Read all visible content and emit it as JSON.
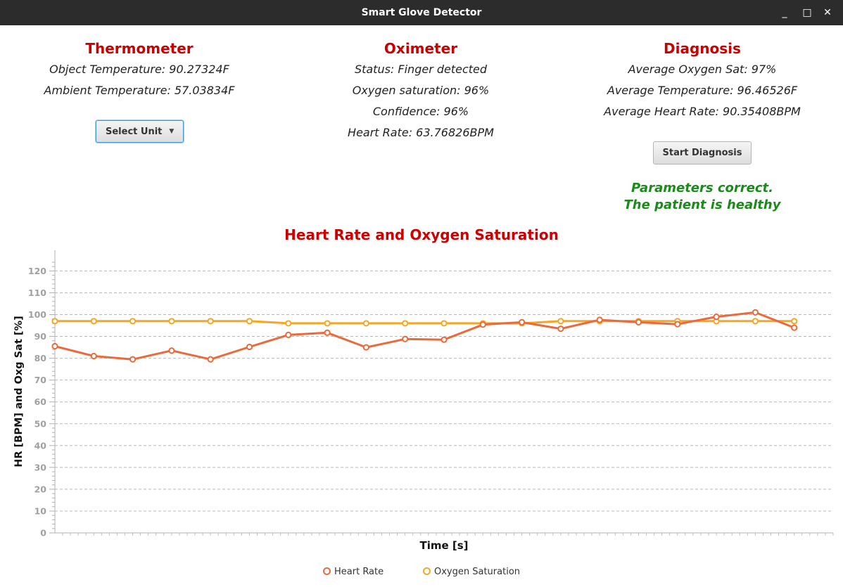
{
  "window": {
    "title": "Smart Glove Detector",
    "minimize": "_",
    "maximize": "□",
    "close": "✕"
  },
  "thermometer": {
    "title": "Thermometer",
    "object_temp": "Object Temperature: 90.27324F",
    "ambient_temp": "Ambient Temperature: 57.03834F",
    "select_label": "Select Unit"
  },
  "oximeter": {
    "title": "Oximeter",
    "status": "Status: Finger detected",
    "oxygen": "Oxygen saturation: 96%",
    "confidence": "Confidence: 96%",
    "heart_rate": "Heart Rate: 63.76826BPM"
  },
  "diagnosis": {
    "title": "Diagnosis",
    "avg_oxygen": "Average Oxygen Sat: 97%",
    "avg_temp": "Average Temperature: 96.46526F",
    "avg_hr": "Average Heart Rate: 90.35408BPM",
    "button_label": "Start Diagnosis",
    "result_line1": "Parameters correct.",
    "result_line2": "The patient is healthy"
  },
  "chart_data": {
    "type": "line",
    "title": "Heart Rate and Oxygen Saturation",
    "xlabel": "Time [s]",
    "ylabel": "HR [BPM] and Oxg Sat [%]",
    "ylim": [
      0,
      125
    ],
    "yticks": [
      0,
      10,
      20,
      30,
      40,
      50,
      60,
      70,
      80,
      90,
      100,
      110,
      120
    ],
    "x": [
      0,
      1,
      2,
      3,
      4,
      5,
      6,
      7,
      8,
      9,
      10,
      11,
      12,
      13,
      14,
      15,
      16,
      17,
      18,
      19
    ],
    "grid": true,
    "legend": "bottom",
    "series": [
      {
        "name": "Heart Rate",
        "color": "#ea6a3c",
        "values": [
          85.5,
          81,
          79.5,
          83.5,
          79.5,
          85.2,
          90.7,
          91.7,
          85,
          88.8,
          88.5,
          95.4,
          96.5,
          93.5,
          97.6,
          96.5,
          95.6,
          99,
          101,
          94
        ]
      },
      {
        "name": "Oxygen Saturation",
        "color": "#f5a623",
        "values": [
          97,
          97,
          97,
          97,
          97,
          97,
          96,
          96,
          96,
          96,
          96,
          96,
          96,
          97,
          97,
          97,
          97,
          97,
          97,
          97
        ]
      }
    ]
  }
}
